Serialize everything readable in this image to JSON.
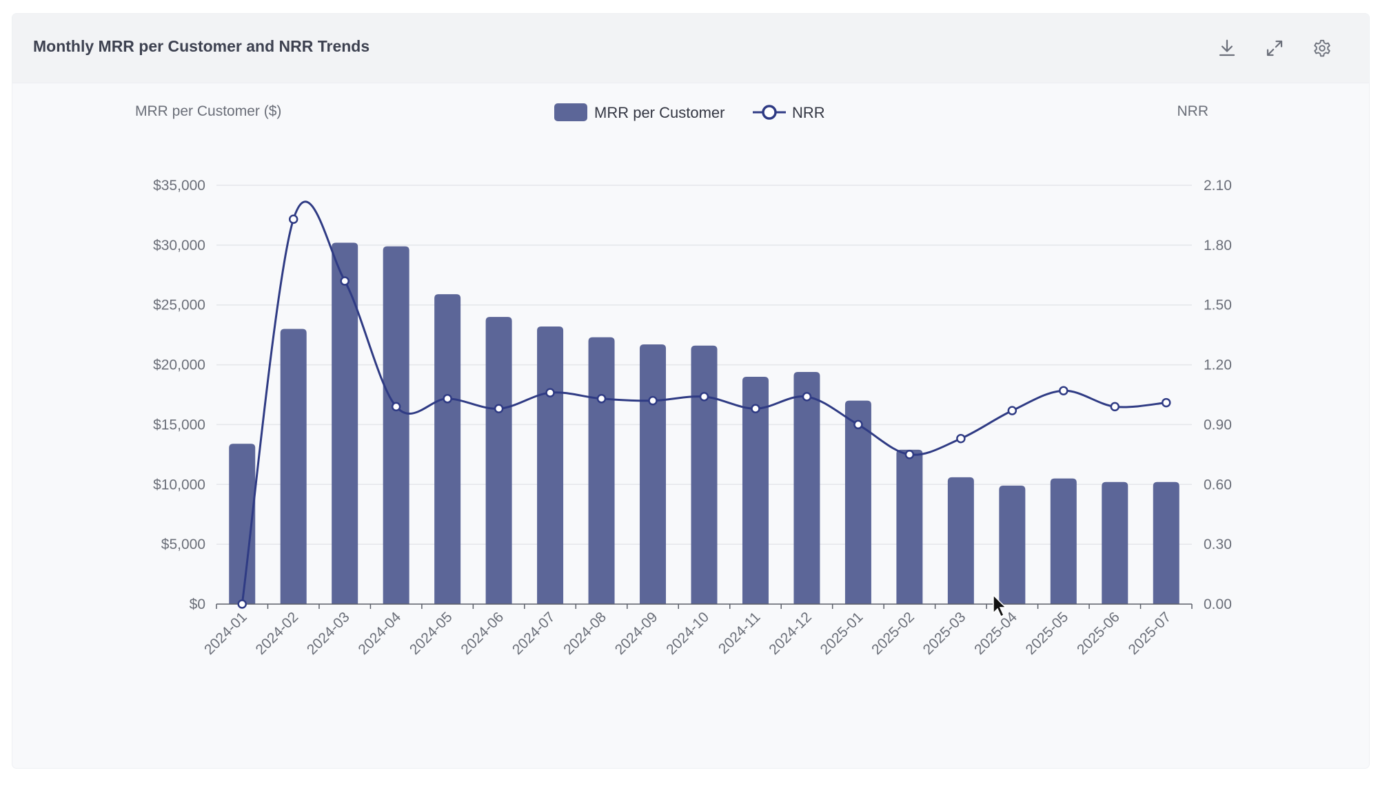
{
  "card": {
    "title": "Monthly MRR per Customer and NRR Trends"
  },
  "toolbar": {
    "download_icon": "download-icon",
    "fullscreen_icon": "expand-icon",
    "settings_icon": "gear-icon"
  },
  "colors": {
    "bar": "#5c6698",
    "line": "#2f3b84",
    "grid": "#e4e6ea",
    "axis": "#5a5e68"
  },
  "chart_data": {
    "type": "bar",
    "ylabel": "MRR per Customer ($)",
    "y2label": "NRR",
    "categories": [
      "2024-01",
      "2024-02",
      "2024-03",
      "2024-04",
      "2024-05",
      "2024-06",
      "2024-07",
      "2024-08",
      "2024-09",
      "2024-10",
      "2024-11",
      "2024-12",
      "2025-01",
      "2025-02",
      "2025-03",
      "2025-04",
      "2025-05",
      "2025-06",
      "2025-07"
    ],
    "series": [
      {
        "name": "MRR per Customer",
        "type": "bar",
        "axis": "left",
        "values": [
          13400,
          23000,
          30200,
          29900,
          25900,
          24000,
          23200,
          22300,
          21700,
          21600,
          19000,
          19400,
          17000,
          12900,
          10600,
          9900,
          10500,
          10200,
          10200
        ]
      },
      {
        "name": "NRR",
        "type": "line",
        "axis": "right",
        "smooth": true,
        "values": [
          0.0,
          1.93,
          1.62,
          0.99,
          1.03,
          0.98,
          1.06,
          1.03,
          1.02,
          1.04,
          0.98,
          1.04,
          0.9,
          0.75,
          0.83,
          0.97,
          1.07,
          0.99,
          1.01
        ]
      }
    ],
    "ylim": [
      0,
      35000
    ],
    "yticks": [
      0,
      5000,
      10000,
      15000,
      20000,
      25000,
      30000,
      35000
    ],
    "ytick_labels": [
      "$0",
      "$5,000",
      "$10,000",
      "$15,000",
      "$20,000",
      "$25,000",
      "$30,000",
      "$35,000"
    ],
    "y2lim": [
      0,
      2.1
    ],
    "y2ticks": [
      0,
      0.3,
      0.6,
      0.9,
      1.2,
      1.5,
      1.8,
      2.1
    ],
    "y2tick_labels": [
      "0.00",
      "0.30",
      "0.60",
      "0.90",
      "1.20",
      "1.50",
      "1.80",
      "2.10"
    ],
    "grid": true,
    "legend": "top-center"
  }
}
